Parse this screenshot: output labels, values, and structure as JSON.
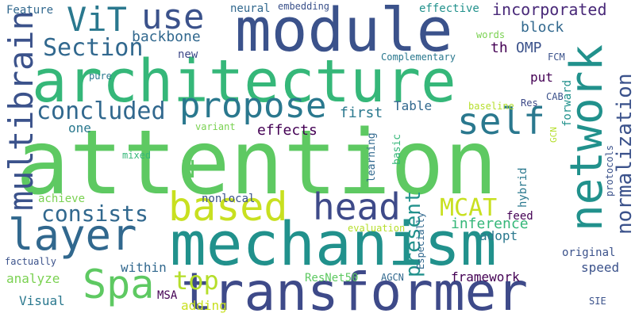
{
  "palette": {
    "purple": "#440154",
    "indigo": "#3b528b",
    "blue": "#31688e",
    "teal": "#21918c",
    "green": "#35b779",
    "lime": "#5ec962",
    "yellow": "#b5de2b",
    "darkteal": "#2a788e"
  },
  "words": [
    {
      "id": "attention",
      "text": "attention",
      "color": "#5ec962"
    },
    {
      "id": "architecture",
      "text": "architecture",
      "color": "#35b779"
    },
    {
      "id": "module",
      "text": "module",
      "color": "#3b528b"
    },
    {
      "id": "mechanism",
      "text": "mechanism",
      "color": "#21918c"
    },
    {
      "id": "transformer",
      "text": "transformer",
      "color": "#3e4a89"
    },
    {
      "id": "network",
      "text": "network",
      "color": "#21918c"
    },
    {
      "id": "layer",
      "text": "layer",
      "color": "#31688e"
    },
    {
      "id": "propose",
      "text": "propose",
      "color": "#2a788e"
    },
    {
      "id": "based",
      "text": "based",
      "color": "#c8e020"
    },
    {
      "id": "head",
      "text": "head",
      "color": "#3e4a89"
    },
    {
      "id": "use",
      "text": "use",
      "color": "#3b528b"
    },
    {
      "id": "vit",
      "text": "ViT",
      "color": "#2a788e"
    },
    {
      "id": "self",
      "text": "self",
      "color": "#2a788e"
    },
    {
      "id": "multibrain",
      "text": "multibrain",
      "color": "#3b528b"
    },
    {
      "id": "spa",
      "text": "Spa",
      "color": "#5ec962"
    },
    {
      "id": "section",
      "text": "Section",
      "color": "#31688e"
    },
    {
      "id": "concluded",
      "text": "concluded",
      "color": "#31688e"
    },
    {
      "id": "consists",
      "text": "consists",
      "color": "#31688e"
    },
    {
      "id": "normalization",
      "text": "normalization",
      "color": "#3b528b"
    },
    {
      "id": "mcat",
      "text": "MCAT",
      "color": "#c8e020"
    },
    {
      "id": "top",
      "text": "top",
      "color": "#b5de2b"
    },
    {
      "id": "present",
      "text": "present",
      "color": "#21918c"
    },
    {
      "id": "n",
      "text": "N",
      "color": "#5ec962"
    },
    {
      "id": "incorporated",
      "text": "incorporated",
      "color": "#482878"
    },
    {
      "id": "backbone",
      "text": "backbone",
      "color": "#31688e"
    },
    {
      "id": "block",
      "text": "block",
      "color": "#31688e"
    },
    {
      "id": "omp",
      "text": "OMP",
      "color": "#3b528b"
    },
    {
      "id": "th",
      "text": "th",
      "color": "#440154"
    },
    {
      "id": "effects",
      "text": "effects",
      "color": "#440154"
    },
    {
      "id": "first",
      "text": "first",
      "color": "#2a788e"
    },
    {
      "id": "inference",
      "text": "inference",
      "color": "#35b779"
    },
    {
      "id": "table",
      "text": "Table",
      "color": "#31688e"
    },
    {
      "id": "one",
      "text": "one",
      "color": "#2a788e"
    },
    {
      "id": "put",
      "text": "put",
      "color": "#440154"
    },
    {
      "id": "adopt",
      "text": "adopt",
      "color": "#2a788e"
    },
    {
      "id": "speed",
      "text": "speed",
      "color": "#3b528b"
    },
    {
      "id": "within",
      "text": "within",
      "color": "#31688e"
    },
    {
      "id": "analyze",
      "text": "analyze",
      "color": "#7ad151"
    },
    {
      "id": "visual",
      "text": "Visual",
      "color": "#2a788e"
    },
    {
      "id": "feature",
      "text": "Feature",
      "color": "#31688e"
    },
    {
      "id": "neural",
      "text": "neural",
      "color": "#31688e"
    },
    {
      "id": "embedding",
      "text": "embedding",
      "color": "#3b528b"
    },
    {
      "id": "effective",
      "text": "effective",
      "color": "#21918c"
    },
    {
      "id": "new",
      "text": "new",
      "color": "#3e4a89"
    },
    {
      "id": "complementary",
      "text": "Complementary",
      "color": "#2a788e"
    },
    {
      "id": "words",
      "text": "words",
      "color": "#7ad151"
    },
    {
      "id": "fcm",
      "text": "FCM",
      "color": "#3b528b"
    },
    {
      "id": "pure",
      "text": "pure",
      "color": "#2a788e"
    },
    {
      "id": "variant",
      "text": "variant",
      "color": "#7ad151"
    },
    {
      "id": "res",
      "text": "Res",
      "color": "#3e4a89"
    },
    {
      "id": "cab",
      "text": "CAB",
      "color": "#3b528b"
    },
    {
      "id": "baseline",
      "text": "baseline",
      "color": "#b5de2b"
    },
    {
      "id": "gcn",
      "text": "GCN",
      "color": "#b5de2b"
    },
    {
      "id": "forward",
      "text": "forward",
      "color": "#21918c"
    },
    {
      "id": "protocols",
      "text": "protocols",
      "color": "#3b528b"
    },
    {
      "id": "mixed",
      "text": "mixed",
      "color": "#35b779"
    },
    {
      "id": "achieve",
      "text": "achieve",
      "color": "#7ad151"
    },
    {
      "id": "nonlocal",
      "text": "nonlocal",
      "color": "#3b528b"
    },
    {
      "id": "learning",
      "text": "learning",
      "color": "#31688e"
    },
    {
      "id": "basic",
      "text": "basic",
      "color": "#35b779"
    },
    {
      "id": "hybrid",
      "text": "hybrid",
      "color": "#2a788e"
    },
    {
      "id": "feed",
      "text": "feed",
      "color": "#440154"
    },
    {
      "id": "evaluation",
      "text": "evaluation",
      "color": "#b5de2b"
    },
    {
      "id": "especially",
      "text": "Especially",
      "color": "#31688e"
    },
    {
      "id": "original",
      "text": "original",
      "color": "#3b528b"
    },
    {
      "id": "factually",
      "text": "factually",
      "color": "#3b528b"
    },
    {
      "id": "resnet50",
      "text": "ResNet50",
      "color": "#5ec962"
    },
    {
      "id": "agcn",
      "text": "AGCN",
      "color": "#31688e"
    },
    {
      "id": "framework",
      "text": "framework",
      "color": "#440154"
    },
    {
      "id": "msa",
      "text": "MSA",
      "color": "#440154"
    },
    {
      "id": "adding",
      "text": "adding",
      "color": "#c8e020"
    },
    {
      "id": "sie",
      "text": "SIE",
      "color": "#3b528b"
    }
  ]
}
